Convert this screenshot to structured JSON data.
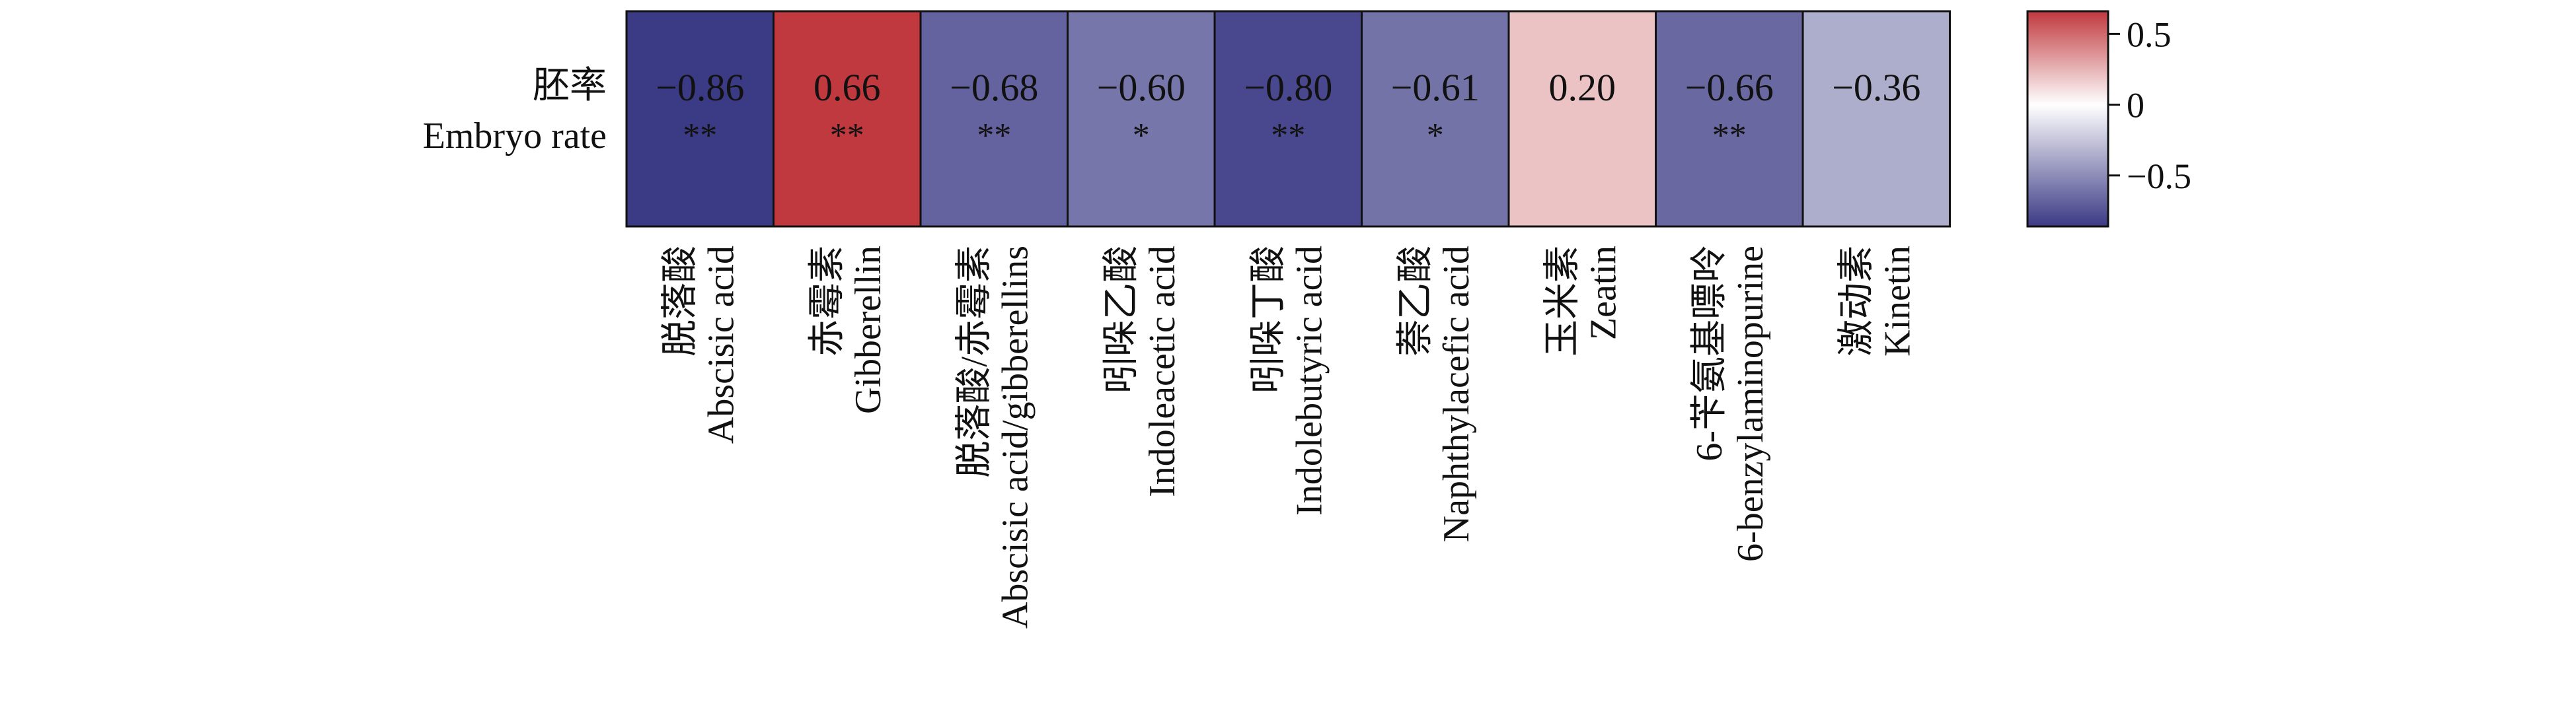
{
  "chart_data": {
    "type": "heatmap",
    "row_label": {
      "zh": "胚率",
      "en": "Embryo rate"
    },
    "columns": [
      {
        "zh": "脱落酸",
        "en": "Abscisic acid",
        "value": -0.86,
        "sig": "**",
        "value_text": "−0.86"
      },
      {
        "zh": "赤霉素",
        "en": "Gibberellin",
        "value": 0.66,
        "sig": "**",
        "value_text": "0.66"
      },
      {
        "zh": "脱落酸/赤霉素",
        "en": "Abscisic acid/gibberellins",
        "value": -0.68,
        "sig": "**",
        "value_text": "−0.68"
      },
      {
        "zh": "吲哚乙酸",
        "en": "Indoleacetic acid",
        "value": -0.6,
        "sig": "*",
        "value_text": "−0.60"
      },
      {
        "zh": "吲哚丁酸",
        "en": "Indolebutyric acid",
        "value": -0.8,
        "sig": "**",
        "value_text": "−0.80"
      },
      {
        "zh": "萘乙酸",
        "en": "Naphthylacefic acid",
        "value": -0.61,
        "sig": "*",
        "value_text": "−0.61"
      },
      {
        "zh": "玉米素",
        "en": "Zeatin",
        "value": 0.2,
        "sig": "",
        "value_text": "0.20"
      },
      {
        "zh": "6-苄氨基嘌呤",
        "en": "6-benzylaminopurine",
        "value": -0.66,
        "sig": "**",
        "value_text": "−0.66"
      },
      {
        "zh": "激动素",
        "en": "Kinetin",
        "value": -0.36,
        "sig": "",
        "value_text": "−0.36"
      }
    ],
    "colorbar": {
      "range": [
        -0.86,
        0.66
      ],
      "ticks": [
        {
          "value": 0.5,
          "label": "0.5"
        },
        {
          "value": 0,
          "label": "0"
        },
        {
          "value": -0.5,
          "label": "−0.5"
        }
      ],
      "colors": {
        "low": "#3b3a85",
        "mid": "#ffffff",
        "high": "#c0393e"
      }
    }
  }
}
